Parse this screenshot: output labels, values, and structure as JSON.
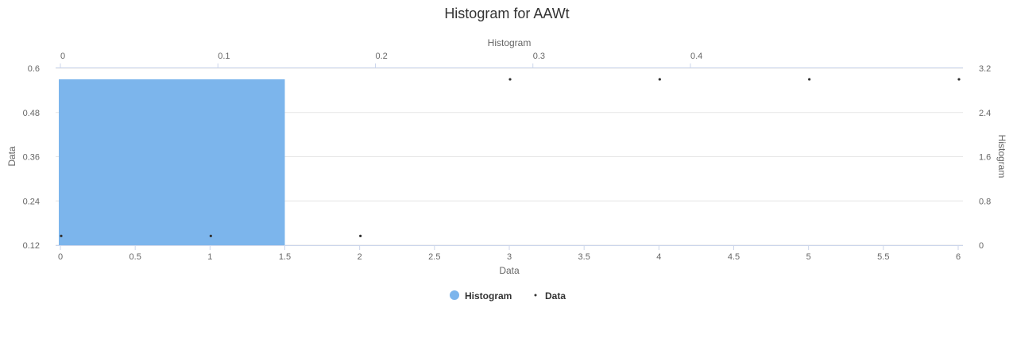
{
  "chart_data": {
    "type": "bar",
    "title": "Histogram for AAWt",
    "colors": {
      "histogram": "#7cb5ec",
      "data": "#333333",
      "grid": "#e6e6e6"
    },
    "axes": {
      "x_bottom": {
        "label": "Data",
        "range": [
          0,
          6
        ],
        "ticks": [
          "0",
          "0.5",
          "1",
          "1.5",
          "2",
          "2.5",
          "3",
          "3.5",
          "4",
          "4.5",
          "5",
          "5.5",
          "6"
        ]
      },
      "x_top": {
        "label": "Histogram",
        "range": [
          0,
          0.57
        ],
        "ticks": [
          "0",
          "0.1",
          "0.2",
          "0.3",
          "0.4"
        ]
      },
      "y_left": {
        "label": "Data",
        "range": [
          0.12,
          0.6
        ],
        "ticks": [
          "0.12",
          "0.24",
          "0.36",
          "0.48",
          "0.6"
        ]
      },
      "y_right": {
        "label": "Histogram",
        "range": [
          0,
          3.2
        ],
        "ticks": [
          "0",
          "0.8",
          "1.6",
          "2.4",
          "3.2"
        ]
      }
    },
    "series": [
      {
        "name": "Histogram",
        "type": "bar",
        "bins": [
          {
            "x0": 0,
            "x1": 1.5,
            "value": 3
          }
        ]
      },
      {
        "name": "Data",
        "type": "scatter",
        "points": [
          {
            "x": 0,
            "y": 0.145
          },
          {
            "x": 1,
            "y": 0.145
          },
          {
            "x": 2,
            "y": 0.145
          },
          {
            "x": 3,
            "y": 0.57
          },
          {
            "x": 4,
            "y": 0.57
          },
          {
            "x": 5,
            "y": 0.57
          },
          {
            "x": 6,
            "y": 0.57
          }
        ]
      }
    ],
    "legend": {
      "position": "bottom-center",
      "items": [
        "Histogram",
        "Data"
      ]
    },
    "grid": true
  }
}
